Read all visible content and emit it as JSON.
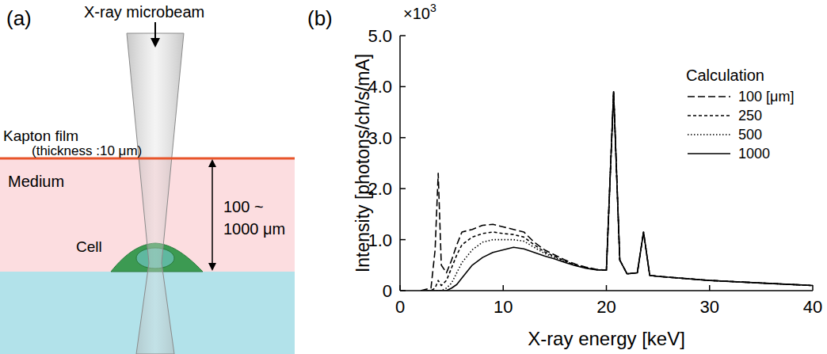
{
  "diagram": {
    "panel_label": "(a)",
    "beam_label": "X-ray microbeam",
    "film_label": "Kapton film",
    "film_thickness": "(thickness :10 μm)",
    "medium_label": "Medium",
    "cell_label": "Cell",
    "depth_label": [
      "100 ~",
      "1000 μm"
    ]
  },
  "chart_data": {
    "type": "line",
    "panel_label": "(b)",
    "x_label": "X-ray energy [keV]",
    "y_label": "Intensity [photons/ch/s/mA]",
    "y_scale_note": {
      "text": "×10",
      "superscript": "3"
    },
    "legend_title": "Calculation",
    "legend": "upper right",
    "xlim": [
      0,
      40
    ],
    "xticks": [
      0,
      10,
      20,
      30,
      40
    ],
    "ylim": [
      0,
      5
    ],
    "yticks": [
      0,
      {
        "value": 1,
        "label": "1.0"
      },
      {
        "value": 2,
        "label": "2.0"
      },
      {
        "value": 3,
        "label": "3.0"
      },
      {
        "value": 4,
        "label": "4.0"
      },
      {
        "value": 5,
        "label": "5.0"
      }
    ],
    "x": [
      2,
      3,
      3.4,
      3.7,
      4.0,
      4.5,
      5,
      5.5,
      6,
      7,
      8,
      9,
      10,
      11,
      12,
      13,
      14,
      15,
      16,
      17,
      18,
      19,
      20,
      20.7,
      21.3,
      22,
      23,
      23.6,
      24.2,
      25,
      30,
      35,
      40
    ],
    "series": [
      {
        "name": "100 [μm]",
        "color": "#000000",
        "line_style": "dashed",
        "values": [
          0,
          0.05,
          0.8,
          2.3,
          0.5,
          0.35,
          0.6,
          0.9,
          1.15,
          1.2,
          1.28,
          1.3,
          1.25,
          1.2,
          1.15,
          0.95,
          0.8,
          0.7,
          0.6,
          0.52,
          0.46,
          0.42,
          0.4,
          3.9,
          0.6,
          0.33,
          0.35,
          1.15,
          0.3,
          0.28,
          0.2,
          0.15,
          0.1
        ]
      },
      {
        "name": "250",
        "color": "#000000",
        "line_style": "short_dashed",
        "values": [
          0,
          0,
          0.05,
          0.2,
          0.1,
          0.2,
          0.45,
          0.7,
          0.9,
          1.05,
          1.12,
          1.15,
          1.12,
          1.1,
          1.05,
          0.9,
          0.76,
          0.67,
          0.58,
          0.5,
          0.45,
          0.41,
          0.4,
          3.9,
          0.6,
          0.33,
          0.35,
          1.15,
          0.3,
          0.28,
          0.2,
          0.15,
          0.1
        ]
      },
      {
        "name": "500",
        "color": "#000000",
        "line_style": "dotted",
        "values": [
          0,
          0,
          0,
          0,
          0,
          0.05,
          0.15,
          0.35,
          0.55,
          0.8,
          0.95,
          1.0,
          1.0,
          1.0,
          0.97,
          0.85,
          0.73,
          0.65,
          0.57,
          0.5,
          0.45,
          0.41,
          0.4,
          3.9,
          0.6,
          0.33,
          0.35,
          1.15,
          0.3,
          0.28,
          0.2,
          0.15,
          0.1
        ]
      },
      {
        "name": "1000",
        "color": "#000000",
        "line_style": "solid",
        "values": [
          0,
          0,
          0,
          0,
          0,
          0,
          0.05,
          0.12,
          0.25,
          0.5,
          0.65,
          0.75,
          0.8,
          0.85,
          0.82,
          0.75,
          0.68,
          0.62,
          0.55,
          0.49,
          0.44,
          0.41,
          0.4,
          3.9,
          0.6,
          0.33,
          0.35,
          1.15,
          0.3,
          0.28,
          0.2,
          0.15,
          0.1
        ]
      }
    ]
  }
}
